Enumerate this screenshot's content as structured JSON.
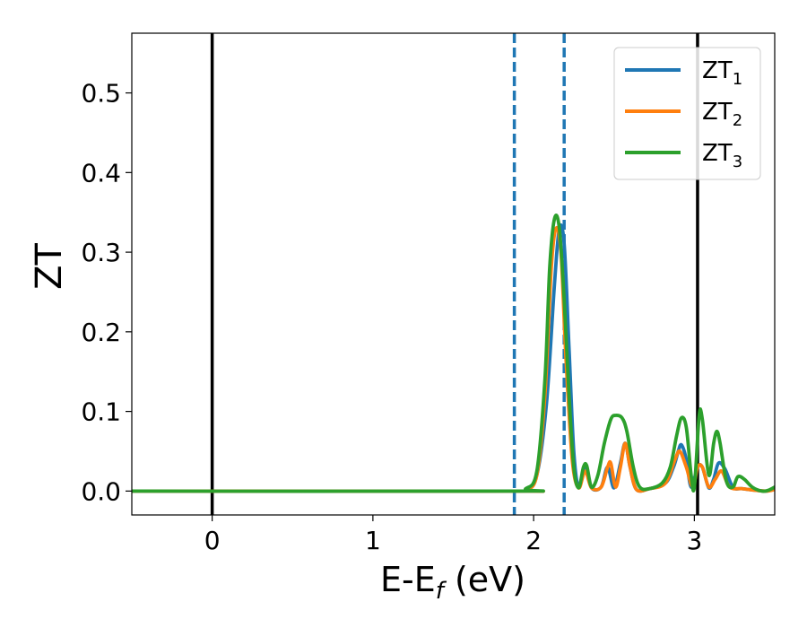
{
  "chart_data": {
    "type": "line",
    "title": "",
    "xlabel": "E-E",
    "xlabel_sub": "f",
    "xlabel_unit": " (eV)",
    "ylabel": "ZT",
    "xlim": [
      -0.5,
      3.5
    ],
    "ylim": [
      -0.03,
      0.575
    ],
    "xticks": [
      {
        "value": 0,
        "label": "0"
      },
      {
        "value": 1,
        "label": "1"
      },
      {
        "value": 2,
        "label": "2"
      },
      {
        "value": 3,
        "label": "3"
      }
    ],
    "yticks": [
      {
        "value": 0.0,
        "label": "0.0"
      },
      {
        "value": 0.1,
        "label": "0.1"
      },
      {
        "value": 0.2,
        "label": "0.2"
      },
      {
        "value": 0.3,
        "label": "0.3"
      },
      {
        "value": 0.4,
        "label": "0.4"
      },
      {
        "value": 0.5,
        "label": "0.5"
      }
    ],
    "grid": false,
    "legend_position": "top-right",
    "vertical_lines": [
      {
        "x": 0.0,
        "style": "solid",
        "color": "#000000"
      },
      {
        "x": 3.02,
        "style": "solid",
        "color": "#000000"
      },
      {
        "x": 1.88,
        "style": "dashed",
        "color": "#1f77b4"
      },
      {
        "x": 2.19,
        "style": "dashed",
        "color": "#1f77b4"
      }
    ],
    "series": [
      {
        "name": "ZT",
        "name_sub": "1",
        "color": "#1f77b4",
        "points": [
          [
            -0.5,
            0
          ],
          [
            1.86,
            0
          ],
          [
            1.95,
            0.002
          ],
          [
            2.02,
            0.02
          ],
          [
            2.08,
            0.11
          ],
          [
            2.13,
            0.26
          ],
          [
            2.16,
            0.33
          ],
          [
            2.19,
            0.31
          ],
          [
            2.22,
            0.18
          ],
          [
            2.25,
            0.05
          ],
          [
            2.28,
            0.005
          ],
          [
            2.32,
            0.03
          ],
          [
            2.36,
            0.004
          ],
          [
            2.42,
            0.005
          ],
          [
            2.46,
            0.03
          ],
          [
            2.5,
            0.004
          ],
          [
            2.54,
            0.035
          ],
          [
            2.57,
            0.06
          ],
          [
            2.6,
            0.03
          ],
          [
            2.64,
            0.002
          ],
          [
            2.72,
            0.003
          ],
          [
            2.82,
            0.01
          ],
          [
            2.87,
            0.03
          ],
          [
            2.9,
            0.05
          ],
          [
            2.92,
            0.058
          ],
          [
            2.95,
            0.04
          ],
          [
            2.98,
            0.005
          ],
          [
            3.02,
            0.03
          ],
          [
            3.05,
            0.03
          ],
          [
            3.09,
            0.004
          ],
          [
            3.12,
            0.015
          ],
          [
            3.15,
            0.035
          ],
          [
            3.19,
            0.028
          ],
          [
            3.24,
            0.005
          ],
          [
            3.3,
            0.003
          ],
          [
            3.38,
            0.001
          ],
          [
            3.45,
            0
          ],
          [
            3.5,
            0.003
          ]
        ]
      },
      {
        "name": "ZT",
        "name_sub": "2",
        "color": "#ff7f0e",
        "points": [
          [
            -0.5,
            0
          ],
          [
            1.86,
            0
          ],
          [
            1.95,
            0.002
          ],
          [
            2.02,
            0.02
          ],
          [
            2.07,
            0.12
          ],
          [
            2.11,
            0.28
          ],
          [
            2.14,
            0.33
          ],
          [
            2.17,
            0.3
          ],
          [
            2.2,
            0.17
          ],
          [
            2.24,
            0.04
          ],
          [
            2.28,
            0.004
          ],
          [
            2.32,
            0.025
          ],
          [
            2.36,
            0.004
          ],
          [
            2.42,
            0.005
          ],
          [
            2.46,
            0.03
          ],
          [
            2.48,
            0.035
          ],
          [
            2.51,
            0.005
          ],
          [
            2.54,
            0.03
          ],
          [
            2.57,
            0.06
          ],
          [
            2.6,
            0.03
          ],
          [
            2.64,
            0.002
          ],
          [
            2.72,
            0.003
          ],
          [
            2.82,
            0.01
          ],
          [
            2.88,
            0.04
          ],
          [
            2.91,
            0.05
          ],
          [
            2.95,
            0.03
          ],
          [
            2.99,
            0.005
          ],
          [
            3.02,
            0.03
          ],
          [
            3.05,
            0.03
          ],
          [
            3.09,
            0.005
          ],
          [
            3.13,
            0.015
          ],
          [
            3.17,
            0.025
          ],
          [
            3.22,
            0.005
          ],
          [
            3.3,
            0.003
          ],
          [
            3.38,
            0.001
          ],
          [
            3.45,
            0
          ],
          [
            3.5,
            0.002
          ]
        ]
      },
      {
        "name": "ZT",
        "name_sub": "3",
        "color": "#2ca02c",
        "points": [
          [
            -0.5,
            0
          ],
          [
            1.86,
            0
          ],
          [
            1.95,
            0.003
          ],
          [
            2.02,
            0.025
          ],
          [
            2.07,
            0.14
          ],
          [
            2.1,
            0.28
          ],
          [
            2.13,
            0.342
          ],
          [
            2.16,
            0.33
          ],
          [
            2.19,
            0.24
          ],
          [
            2.22,
            0.12
          ],
          [
            2.25,
            0.03
          ],
          [
            2.28,
            0.004
          ],
          [
            2.31,
            0.03
          ],
          [
            2.33,
            0.032
          ],
          [
            2.36,
            0.005
          ],
          [
            2.4,
            0.02
          ],
          [
            2.44,
            0.06
          ],
          [
            2.48,
            0.09
          ],
          [
            2.51,
            0.095
          ],
          [
            2.55,
            0.092
          ],
          [
            2.58,
            0.075
          ],
          [
            2.62,
            0.03
          ],
          [
            2.66,
            0.005
          ],
          [
            2.72,
            0.003
          ],
          [
            2.8,
            0.01
          ],
          [
            2.85,
            0.03
          ],
          [
            2.89,
            0.07
          ],
          [
            2.92,
            0.092
          ],
          [
            2.95,
            0.08
          ],
          [
            2.98,
            0.02
          ],
          [
            3.0,
            0.005
          ],
          [
            3.03,
            0.095
          ],
          [
            3.05,
            0.09
          ],
          [
            3.09,
            0.02
          ],
          [
            3.12,
            0.06
          ],
          [
            3.14,
            0.075
          ],
          [
            3.16,
            0.06
          ],
          [
            3.2,
            0.012
          ],
          [
            3.24,
            0.005
          ],
          [
            3.27,
            0.018
          ],
          [
            3.31,
            0.015
          ],
          [
            3.36,
            0.005
          ],
          [
            3.42,
            0
          ],
          [
            3.46,
            0.001
          ],
          [
            3.5,
            0.005
          ]
        ]
      }
    ]
  }
}
